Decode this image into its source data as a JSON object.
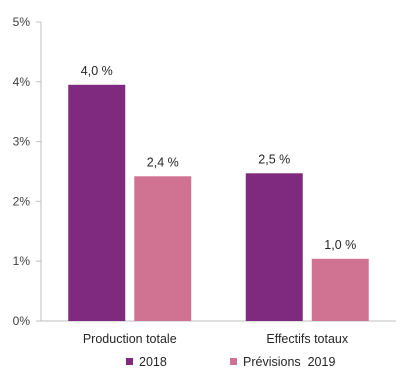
{
  "chart_data": {
    "type": "bar",
    "title": "",
    "xlabel": "",
    "ylabel": "",
    "categories": [
      "Production totale",
      "Effectifs totaux"
    ],
    "series": [
      {
        "name": "2018",
        "values": [
          3.95,
          2.47
        ],
        "labels": [
          "4,0 %",
          "2,5 %"
        ],
        "color": "#7f2a7e"
      },
      {
        "name": "Prévisions  2019",
        "values": [
          2.42,
          1.04
        ],
        "labels": [
          "2,4 %",
          "1,0 %"
        ],
        "color": "#d07392"
      }
    ],
    "ylim": [
      0,
      5
    ],
    "yticks": [
      "0%",
      "1%",
      "2%",
      "3%",
      "4%",
      "5%"
    ],
    "grid": false,
    "legend_position": "bottom"
  }
}
